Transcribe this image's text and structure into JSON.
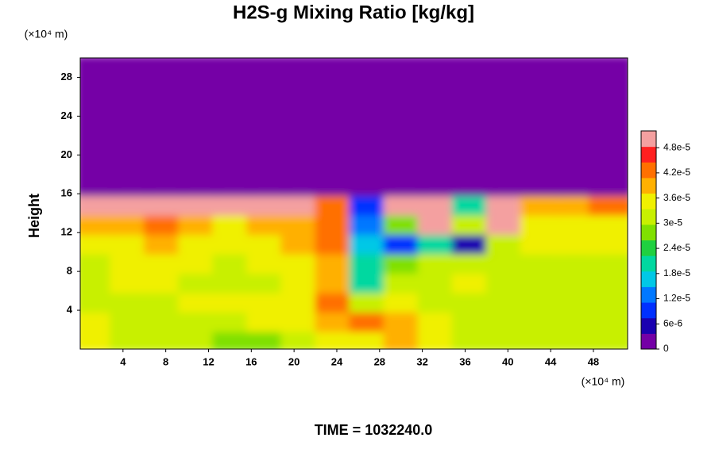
{
  "chart_data": {
    "type": "contour",
    "title": "H2S-g Mixing Ratio [kg/kg]",
    "y_unit": "(×10⁴ m)",
    "ylabel": "Height",
    "x_unit": "(×10⁴ m)",
    "time_label": "TIME = 1032240.0",
    "xlim": [
      0,
      51.2
    ],
    "ylim": [
      0,
      30
    ],
    "xticks": [
      4,
      8,
      12,
      16,
      20,
      24,
      28,
      32,
      36,
      40,
      44,
      48
    ],
    "yticks": [
      4,
      8,
      12,
      16,
      20,
      24,
      28
    ],
    "x": [
      1.6,
      4.8,
      8,
      11.2,
      14.4,
      17.6,
      20.8,
      24,
      27.2,
      30.4,
      33.6,
      36.8,
      40,
      43.2,
      46.4,
      49.6
    ],
    "y": [
      1,
      3,
      5,
      7,
      9,
      11,
      13,
      15,
      17,
      19,
      21,
      23,
      25,
      27,
      29
    ],
    "z": [
      [
        3.6e-05,
        3.2e-05,
        3.1e-05,
        3e-05,
        2.8e-05,
        2.8e-05,
        3e-05,
        3.6e-05,
        3.6e-05,
        3.8e-05,
        3.4e-05,
        3e-05,
        3e-05,
        3.2e-05,
        3.2e-05,
        3.2e-05
      ],
      [
        3.4e-05,
        3.2e-05,
        3.2e-05,
        3.3e-05,
        3.3e-05,
        3.4e-05,
        3.4e-05,
        4e-05,
        4.2e-05,
        3.8e-05,
        3.4e-05,
        3.2e-05,
        3.2e-05,
        3.2e-05,
        3.2e-05,
        3.3e-05
      ],
      [
        3.2e-05,
        3.3e-05,
        3.3e-05,
        3.4e-05,
        3.4e-05,
        3.4e-05,
        3.5e-05,
        4.2e-05,
        3e-05,
        3.4e-05,
        3.3e-05,
        3.2e-05,
        3.3e-05,
        3.1e-05,
        3.2e-05,
        3.2e-05
      ],
      [
        3.3e-05,
        3.4e-05,
        3.4e-05,
        3.3e-05,
        3.3e-05,
        3.3e-05,
        3.5e-05,
        4e-05,
        2.2e-05,
        3.2e-05,
        3.3e-05,
        3.4e-05,
        3e-05,
        3.2e-05,
        3.3e-05,
        3.2e-05
      ],
      [
        3.2e-05,
        3.4e-05,
        3.6e-05,
        3.4e-05,
        3.3e-05,
        3.4e-05,
        3.6e-05,
        4e-05,
        2e-05,
        2.8e-05,
        3e-05,
        3e-05,
        3.2e-05,
        3.3e-05,
        3.3e-05,
        3.3e-05
      ],
      [
        3.4e-05,
        3.6e-05,
        3.8e-05,
        3.6e-05,
        3.4e-05,
        3.6e-05,
        3.8e-05,
        4.2e-05,
        1.6e-05,
        1e-05,
        2e-05,
        6e-06,
        3.2e-05,
        3.4e-05,
        3.4e-05,
        3.4e-05
      ],
      [
        3.8e-05,
        4e-05,
        4.2e-05,
        3.8e-05,
        3.6e-05,
        3.8e-05,
        4e-05,
        4.4e-05,
        1.2e-05,
        2.6e-05,
        5e-05,
        3e-05,
        5e-05,
        3.6e-05,
        3.6e-05,
        3.6e-05
      ],
      [
        5e-05,
        5e-05,
        5e-05,
        5e-05,
        5e-05,
        5e-05,
        5e-05,
        4.4e-05,
        1e-05,
        5e-05,
        5e-05,
        2e-05,
        5e-05,
        4e-05,
        4e-05,
        4.2e-05
      ],
      [
        0,
        0,
        0,
        0,
        0,
        0,
        0,
        0,
        0,
        0,
        0,
        0,
        0,
        0,
        0,
        0
      ],
      [
        0,
        0,
        0,
        0,
        0,
        0,
        0,
        0,
        0,
        0,
        0,
        0,
        0,
        0,
        0,
        0
      ],
      [
        0,
        0,
        0,
        0,
        0,
        0,
        0,
        0,
        0,
        0,
        0,
        0,
        0,
        0,
        0,
        0
      ],
      [
        0,
        0,
        0,
        0,
        0,
        0,
        0,
        0,
        0,
        0,
        0,
        0,
        0,
        0,
        0,
        0
      ],
      [
        0,
        0,
        0,
        0,
        0,
        0,
        0,
        0,
        0,
        0,
        0,
        0,
        0,
        0,
        0,
        0
      ],
      [
        0,
        0,
        0,
        0,
        0,
        0,
        0,
        0,
        0,
        0,
        0,
        0,
        0,
        0,
        0,
        0
      ],
      [
        0,
        0,
        0,
        0,
        0,
        0,
        0,
        0,
        0,
        0,
        0,
        0,
        0,
        0,
        0,
        0
      ]
    ],
    "colorbar": {
      "lim": [
        0,
        5.2e-05
      ],
      "colors": [
        "#7400a6",
        "#1a00b0",
        "#0030ff",
        "#0078ff",
        "#00c8e6",
        "#00d8a0",
        "#20d040",
        "#80e000",
        "#c8f000",
        "#f0f000",
        "#ffb000",
        "#ff7000",
        "#ff2020",
        "#f4a0a0"
      ],
      "ticks": [
        0,
        {
          "value": 6e-06,
          "label": "6e-6"
        },
        {
          "value": 1.2e-05,
          "label": "1.2e-5"
        },
        {
          "value": 1.8e-05,
          "label": "1.8e-5"
        },
        {
          "value": 2.4e-05,
          "label": "2.4e-5"
        },
        {
          "value": 3e-05,
          "label": "3e-5"
        },
        {
          "value": 3.6e-05,
          "label": "3.6e-5"
        },
        {
          "value": 4.2e-05,
          "label": "4.2e-5"
        },
        {
          "value": 4.8e-05,
          "label": "4.8e-5"
        }
      ]
    }
  }
}
